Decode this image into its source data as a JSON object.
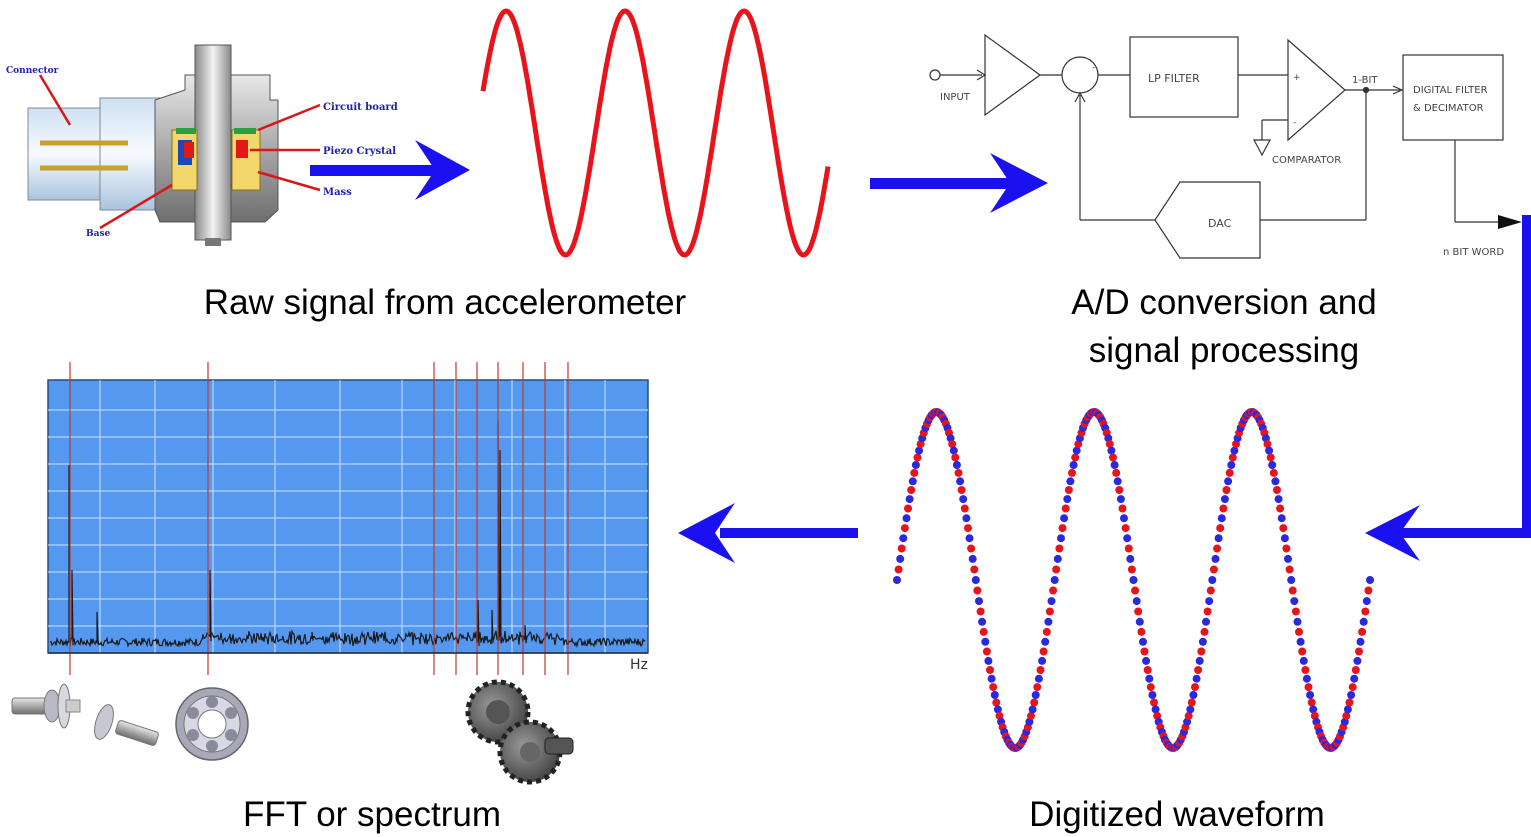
{
  "captions": {
    "raw": "Raw signal from accelerometer",
    "ad_line1": "A/D conversion and",
    "ad_line2": "signal processing",
    "digitized": "Digitized waveform",
    "fft": "FFT or spectrum"
  },
  "accelerometer": {
    "labels": {
      "connector": "Connector",
      "circuit_board": "Circuit board",
      "piezo": "Piezo Crystal",
      "mass": "Mass",
      "base": "Base"
    }
  },
  "adc": {
    "input": "INPUT",
    "lp_filter": "LP FILTER",
    "bit1": "1-BIT",
    "comparator": "COMPARATOR",
    "dac": "DAC",
    "digital_filter_l1": "DIGITAL FILTER",
    "digital_filter_l2": "& DECIMATOR",
    "bit_word": "n BIT WORD"
  },
  "spectrum": {
    "unit": "Hz"
  },
  "colors": {
    "raw_wave": "#e8141b",
    "arrow": "#1a10f0",
    "spectrum_bg": "#5598f0",
    "marker": "#c0392b",
    "dot_blue": "#2a28e0",
    "dot_red": "#e8141b"
  }
}
